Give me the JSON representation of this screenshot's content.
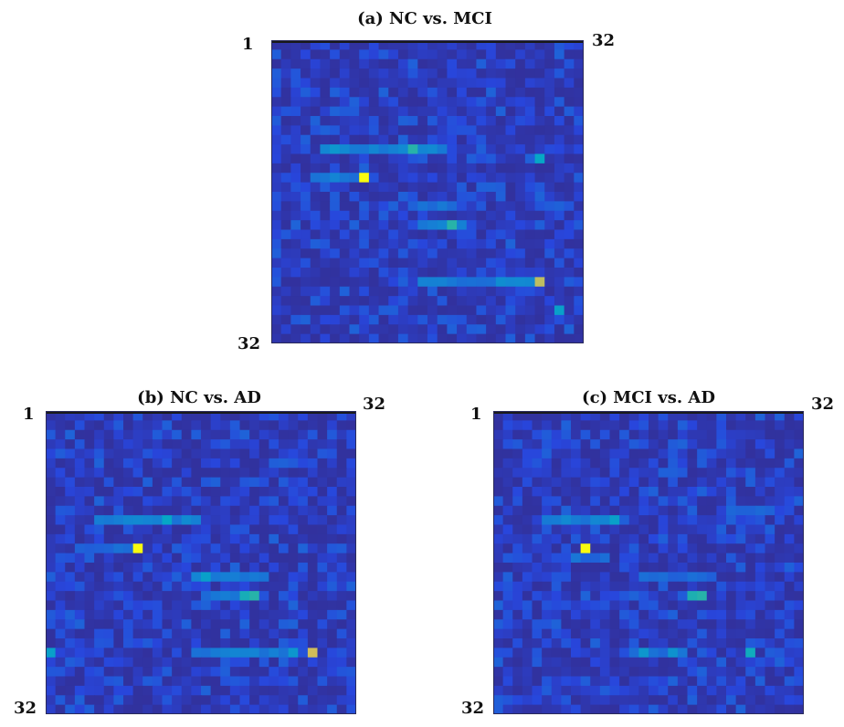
{
  "chart_data": [
    {
      "type": "heatmap",
      "title": "(a)  NC vs. MCI",
      "rows": 32,
      "cols": 32,
      "corner_labels": {
        "first": "1",
        "last_col": "32",
        "last_row": "32"
      },
      "colormap": "parula",
      "seed": 11,
      "base_level": 0.1,
      "hotspots": [
        {
          "row": 15,
          "col": 10,
          "value": 1.0
        },
        {
          "row": 26,
          "col": 28,
          "value": 0.82
        },
        {
          "row": 12,
          "col": 15,
          "value": 0.55
        },
        {
          "row": 20,
          "col": 19,
          "value": 0.55
        },
        {
          "row": 13,
          "col": 28,
          "value": 0.45
        },
        {
          "row": 29,
          "col": 30,
          "value": 0.42
        },
        {
          "row": 12,
          "col": 7,
          "value": 0.38
        }
      ],
      "streaks": [
        {
          "row": 12,
          "from": 6,
          "to": 18,
          "value": 0.3
        },
        {
          "row": 15,
          "from": 5,
          "to": 10,
          "value": 0.28
        },
        {
          "row": 20,
          "from": 16,
          "to": 20,
          "value": 0.28
        },
        {
          "row": 26,
          "from": 16,
          "to": 23,
          "value": 0.27
        },
        {
          "row": 26,
          "from": 24,
          "to": 28,
          "value": 0.32
        },
        {
          "row": 18,
          "from": 16,
          "to": 19,
          "value": 0.27
        }
      ]
    },
    {
      "type": "heatmap",
      "title": "(b)  NC vs. AD",
      "rows": 32,
      "cols": 32,
      "corner_labels": {
        "first": "1",
        "last_col": "32",
        "last_row": "32"
      },
      "colormap": "parula",
      "seed": 23,
      "base_level": 0.1,
      "hotspots": [
        {
          "row": 15,
          "col": 10,
          "value": 1.0
        },
        {
          "row": 26,
          "col": 28,
          "value": 0.85
        },
        {
          "row": 20,
          "col": 22,
          "value": 0.55
        },
        {
          "row": 20,
          "col": 21,
          "value": 0.5
        },
        {
          "row": 12,
          "col": 13,
          "value": 0.45
        },
        {
          "row": 18,
          "col": 17,
          "value": 0.42
        },
        {
          "row": 26,
          "col": 1,
          "value": 0.42
        },
        {
          "row": 26,
          "col": 26,
          "value": 0.38
        }
      ],
      "streaks": [
        {
          "row": 12,
          "from": 6,
          "to": 16,
          "value": 0.3
        },
        {
          "row": 18,
          "from": 16,
          "to": 23,
          "value": 0.28
        },
        {
          "row": 20,
          "from": 17,
          "to": 20,
          "value": 0.27
        },
        {
          "row": 26,
          "from": 16,
          "to": 25,
          "value": 0.28
        },
        {
          "row": 15,
          "from": 4,
          "to": 9,
          "value": 0.24
        }
      ]
    },
    {
      "type": "heatmap",
      "title": "(c)  MCI vs. AD",
      "rows": 32,
      "cols": 32,
      "corner_labels": {
        "first": "1",
        "last_col": "32",
        "last_row": "32"
      },
      "colormap": "parula",
      "seed": 37,
      "base_level": 0.1,
      "hotspots": [
        {
          "row": 15,
          "col": 10,
          "value": 1.0
        },
        {
          "row": 20,
          "col": 22,
          "value": 0.55
        },
        {
          "row": 20,
          "col": 21,
          "value": 0.52
        },
        {
          "row": 26,
          "col": 27,
          "value": 0.48
        },
        {
          "row": 12,
          "col": 13,
          "value": 0.42
        },
        {
          "row": 26,
          "col": 16,
          "value": 0.38
        },
        {
          "row": 26,
          "col": 19,
          "value": 0.36
        }
      ],
      "streaks": [
        {
          "row": 12,
          "from": 6,
          "to": 13,
          "value": 0.3
        },
        {
          "row": 16,
          "from": 9,
          "to": 12,
          "value": 0.25
        },
        {
          "row": 18,
          "from": 16,
          "to": 22,
          "value": 0.24
        },
        {
          "row": 26,
          "from": 15,
          "to": 20,
          "value": 0.26
        },
        {
          "row": 11,
          "from": 25,
          "to": 29,
          "value": 0.22
        }
      ]
    }
  ]
}
